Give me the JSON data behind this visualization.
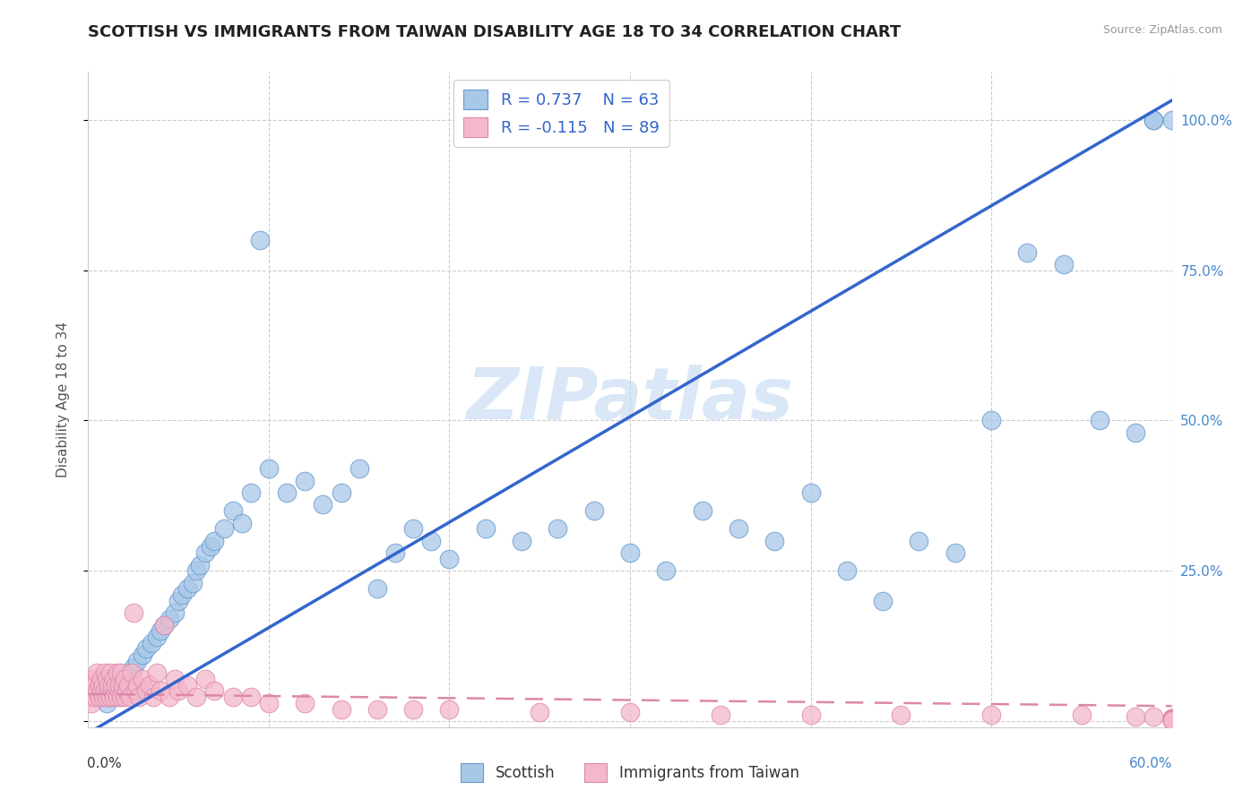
{
  "title": "SCOTTISH VS IMMIGRANTS FROM TAIWAN DISABILITY AGE 18 TO 34 CORRELATION CHART",
  "source": "Source: ZipAtlas.com",
  "ylabel": "Disability Age 18 to 34",
  "xlim": [
    0,
    0.6
  ],
  "ylim": [
    -0.01,
    1.08
  ],
  "scottish_color": "#a8c8e8",
  "scottish_edge_color": "#6699cc",
  "taiwan_color": "#f4b8cc",
  "taiwan_edge_color": "#dd88aa",
  "trend_blue": "#3366cc",
  "trend_pink": "#dd88aa",
  "legend_R_scottish": "R = 0.737",
  "legend_N_scottish": "N = 63",
  "legend_R_taiwan": "R = -0.115",
  "legend_N_taiwan": "N = 89",
  "watermark": "ZIPatlas",
  "watermark_color": "#c0d8f0",
  "scottish_x": [
    0.01,
    0.012,
    0.015,
    0.018,
    0.02,
    0.022,
    0.025,
    0.027,
    0.03,
    0.032,
    0.035,
    0.038,
    0.04,
    0.042,
    0.045,
    0.048,
    0.05,
    0.052,
    0.055,
    0.058,
    0.06,
    0.062,
    0.065,
    0.068,
    0.07,
    0.075,
    0.08,
    0.085,
    0.09,
    0.095,
    0.1,
    0.11,
    0.12,
    0.13,
    0.14,
    0.15,
    0.16,
    0.17,
    0.18,
    0.19,
    0.2,
    0.22,
    0.24,
    0.26,
    0.28,
    0.3,
    0.32,
    0.34,
    0.36,
    0.38,
    0.4,
    0.42,
    0.44,
    0.46,
    0.48,
    0.5,
    0.52,
    0.54,
    0.56,
    0.58,
    0.59,
    0.59,
    0.6
  ],
  "scottish_y": [
    0.03,
    0.04,
    0.05,
    0.06,
    0.07,
    0.08,
    0.09,
    0.1,
    0.11,
    0.12,
    0.13,
    0.14,
    0.15,
    0.16,
    0.17,
    0.18,
    0.2,
    0.21,
    0.22,
    0.23,
    0.25,
    0.26,
    0.28,
    0.29,
    0.3,
    0.32,
    0.35,
    0.33,
    0.38,
    0.8,
    0.42,
    0.38,
    0.4,
    0.36,
    0.38,
    0.42,
    0.22,
    0.28,
    0.32,
    0.3,
    0.27,
    0.32,
    0.3,
    0.32,
    0.35,
    0.28,
    0.25,
    0.35,
    0.32,
    0.3,
    0.38,
    0.25,
    0.2,
    0.3,
    0.28,
    0.5,
    0.78,
    0.76,
    0.5,
    0.48,
    1.0,
    1.0,
    1.0
  ],
  "taiwan_x": [
    0.001,
    0.002,
    0.002,
    0.003,
    0.003,
    0.004,
    0.004,
    0.005,
    0.005,
    0.006,
    0.006,
    0.007,
    0.007,
    0.008,
    0.008,
    0.009,
    0.009,
    0.01,
    0.01,
    0.011,
    0.011,
    0.012,
    0.012,
    0.013,
    0.013,
    0.014,
    0.014,
    0.015,
    0.015,
    0.016,
    0.016,
    0.017,
    0.017,
    0.018,
    0.018,
    0.019,
    0.019,
    0.02,
    0.02,
    0.021,
    0.022,
    0.023,
    0.024,
    0.025,
    0.026,
    0.027,
    0.028,
    0.03,
    0.032,
    0.034,
    0.036,
    0.038,
    0.04,
    0.042,
    0.045,
    0.048,
    0.05,
    0.055,
    0.06,
    0.065,
    0.07,
    0.08,
    0.09,
    0.1,
    0.12,
    0.14,
    0.16,
    0.18,
    0.2,
    0.25,
    0.3,
    0.35,
    0.4,
    0.45,
    0.5,
    0.55,
    0.58,
    0.59,
    0.6,
    0.6,
    0.6,
    0.6,
    0.6,
    0.6,
    0.6,
    0.6,
    0.6,
    0.6,
    0.6
  ],
  "taiwan_y": [
    0.04,
    0.06,
    0.03,
    0.05,
    0.07,
    0.04,
    0.06,
    0.05,
    0.08,
    0.04,
    0.06,
    0.05,
    0.07,
    0.04,
    0.06,
    0.05,
    0.08,
    0.04,
    0.07,
    0.05,
    0.06,
    0.04,
    0.08,
    0.05,
    0.06,
    0.04,
    0.07,
    0.05,
    0.06,
    0.04,
    0.08,
    0.05,
    0.06,
    0.04,
    0.08,
    0.05,
    0.06,
    0.04,
    0.07,
    0.05,
    0.06,
    0.04,
    0.08,
    0.18,
    0.05,
    0.06,
    0.04,
    0.07,
    0.05,
    0.06,
    0.04,
    0.08,
    0.05,
    0.16,
    0.04,
    0.07,
    0.05,
    0.06,
    0.04,
    0.07,
    0.05,
    0.04,
    0.04,
    0.03,
    0.03,
    0.02,
    0.02,
    0.02,
    0.02,
    0.015,
    0.015,
    0.01,
    0.01,
    0.01,
    0.01,
    0.01,
    0.008,
    0.008,
    0.005,
    0.005,
    0.004,
    0.004,
    0.003,
    0.003,
    0.002,
    0.002,
    0.002,
    0.002,
    0.002
  ]
}
